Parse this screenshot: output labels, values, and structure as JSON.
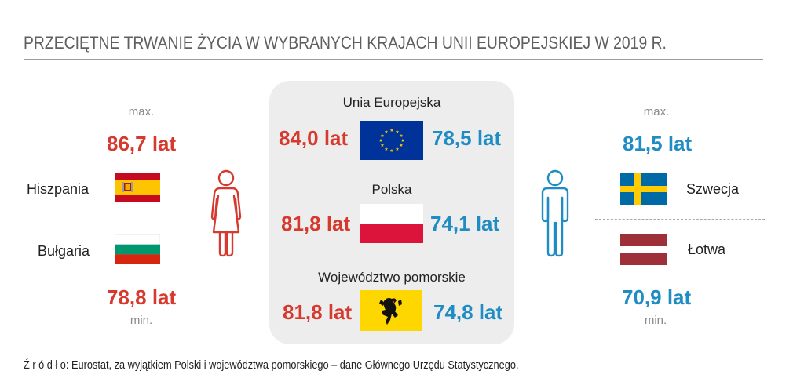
{
  "title": "PRZECIĘTNE TRWANIE ŻYCIA W WYBRANYCH KRAJACH UNII EUROPEJSKIEJ W 2019 R.",
  "left": {
    "max_label": "max.",
    "max_value": "86,7 lat",
    "max_country": "Hiszpania",
    "min_country": "Bułgaria",
    "min_value": "78,8 lat",
    "min_label": "min."
  },
  "right": {
    "max_label": "max.",
    "max_value": "81,5 lat",
    "max_country": "Szwecja",
    "min_country": "Łotwa",
    "min_value": "70,9 lat",
    "min_label": "min."
  },
  "center": {
    "eu": {
      "label": "Unia Europejska",
      "female": "84,0 lat",
      "male": "78,5 lat"
    },
    "pl": {
      "label": "Polska",
      "female": "81,8 lat",
      "male": "74,1 lat"
    },
    "pom": {
      "label": "Województwo pomorskie",
      "female": "81,8 lat",
      "male": "74,8 lat"
    }
  },
  "source": "Ź r ó d ł o: Eurostat, za wyjątkiem Polski i województwa pomorskiego – dane Głównego Urzędu Statystycznego.",
  "colors": {
    "female": "#d63a2f",
    "male": "#1f8cc4",
    "panel": "#ededed"
  },
  "icons": [
    "female-figure-icon",
    "male-figure-icon"
  ]
}
